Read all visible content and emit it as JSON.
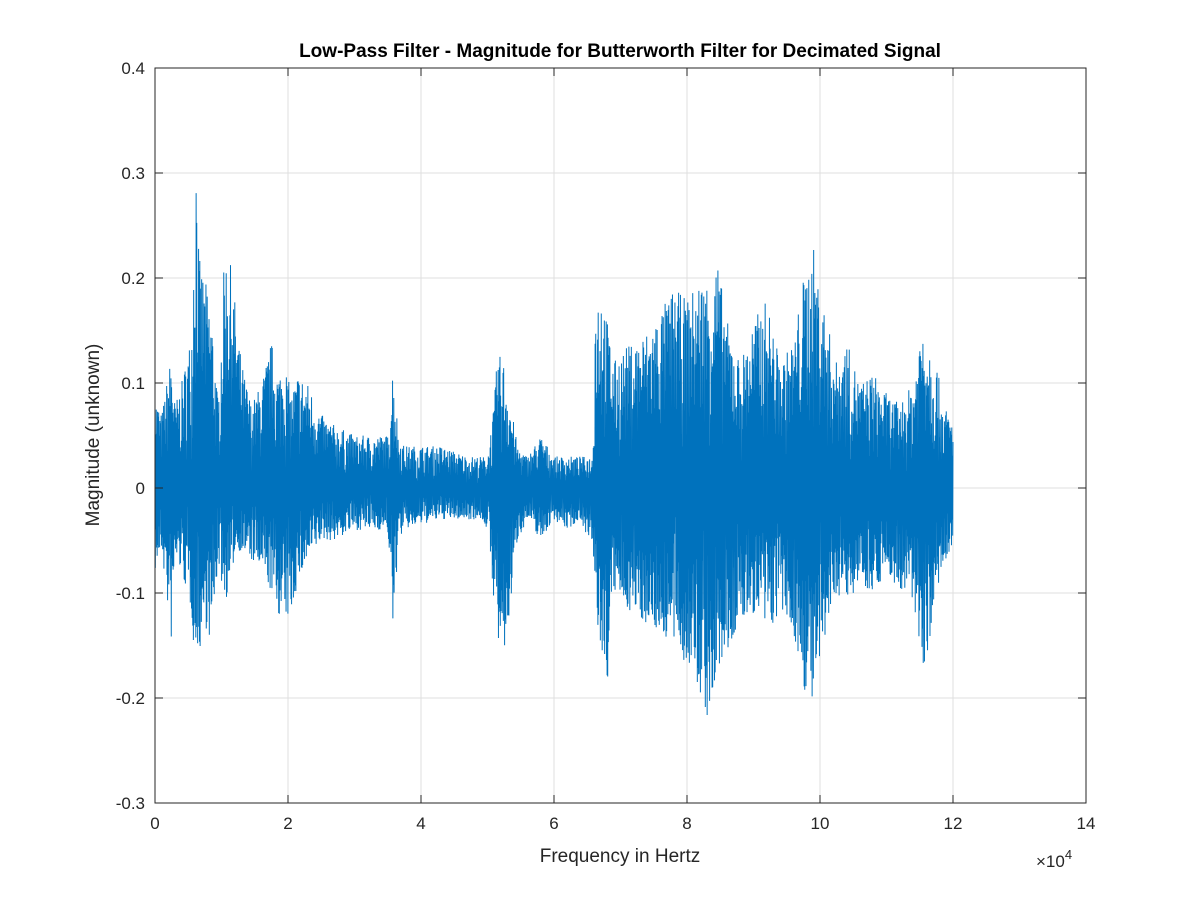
{
  "chart_data": {
    "type": "line",
    "title": "Low-Pass Filter - Magnitude for Butterworth Filter for Decimated Signal",
    "xlabel": "Frequency in Hertz",
    "ylabel": "Magnitude (unknown)",
    "xlim": [
      0,
      140000
    ],
    "ylim": [
      -0.3,
      0.4
    ],
    "x_ticks": [
      0,
      20000,
      40000,
      60000,
      80000,
      100000,
      120000,
      140000
    ],
    "x_tick_labels": [
      "0",
      "2",
      "4",
      "6",
      "8",
      "10",
      "12",
      "14"
    ],
    "x_multiplier": "×10",
    "x_multiplier_exp": "4",
    "y_ticks": [
      -0.3,
      -0.2,
      -0.1,
      0,
      0.1,
      0.2,
      0.3,
      0.4
    ],
    "y_tick_labels": [
      "-0.3",
      "-0.2",
      "-0.1",
      "0",
      "0.1",
      "0.2",
      "0.3",
      "0.4"
    ],
    "grid": true,
    "series": [
      {
        "color": "#0072BD",
        "envelope_x": [
          0,
          1000,
          2500,
          3000,
          4000,
          5500,
          6000,
          6300,
          6600,
          7500,
          8500,
          9500,
          10500,
          11500,
          12000,
          13000,
          14500,
          16000,
          17500,
          18500,
          19500,
          20500,
          21500,
          23000,
          25000,
          27000,
          30000,
          33000,
          35000,
          35800,
          36600,
          37500,
          40000,
          43000,
          45000,
          47000,
          49000,
          50000,
          51000,
          51500,
          52500,
          53500,
          54500,
          56000,
          58000,
          60000,
          62000,
          64000,
          65800,
          66200,
          67000,
          68000,
          69000,
          70000,
          72000,
          74000,
          76000,
          78000,
          80000,
          82000,
          83500,
          84500,
          86000,
          88000,
          90000,
          92000,
          94000,
          96000,
          97500,
          99000,
          100000,
          101000,
          102500,
          104000,
          106000,
          108000,
          110000,
          112000,
          114000,
          115500,
          116500,
          117500,
          118500,
          119500,
          120000
        ],
        "envelope_max": [
          0.09,
          0.07,
          0.13,
          0.08,
          0.1,
          0.15,
          0.3,
          0.35,
          0.22,
          0.2,
          0.17,
          0.08,
          0.23,
          0.21,
          0.18,
          0.12,
          0.08,
          0.1,
          0.14,
          0.11,
          0.12,
          0.09,
          0.11,
          0.1,
          0.07,
          0.06,
          0.05,
          0.05,
          0.05,
          0.12,
          0.05,
          0.04,
          0.04,
          0.04,
          0.035,
          0.03,
          0.03,
          0.03,
          0.08,
          0.13,
          0.12,
          0.08,
          0.04,
          0.03,
          0.05,
          0.03,
          0.03,
          0.03,
          0.03,
          0.18,
          0.2,
          0.16,
          0.12,
          0.13,
          0.14,
          0.15,
          0.17,
          0.19,
          0.18,
          0.2,
          0.2,
          0.22,
          0.16,
          0.12,
          0.16,
          0.18,
          0.12,
          0.14,
          0.2,
          0.23,
          0.19,
          0.16,
          0.12,
          0.14,
          0.1,
          0.11,
          0.09,
          0.08,
          0.1,
          0.17,
          0.14,
          0.12,
          0.08,
          0.07,
          0.06
        ],
        "envelope_min": [
          -0.08,
          -0.06,
          -0.15,
          -0.07,
          -0.08,
          -0.12,
          -0.17,
          -0.15,
          -0.16,
          -0.13,
          -0.15,
          -0.07,
          -0.11,
          -0.09,
          -0.06,
          -0.06,
          -0.07,
          -0.08,
          -0.1,
          -0.12,
          -0.13,
          -0.12,
          -0.09,
          -0.07,
          -0.05,
          -0.05,
          -0.04,
          -0.04,
          -0.04,
          -0.14,
          -0.05,
          -0.04,
          -0.035,
          -0.03,
          -0.03,
          -0.03,
          -0.03,
          -0.04,
          -0.11,
          -0.15,
          -0.17,
          -0.11,
          -0.05,
          -0.03,
          -0.05,
          -0.03,
          -0.04,
          -0.03,
          -0.06,
          -0.11,
          -0.16,
          -0.19,
          -0.1,
          -0.11,
          -0.12,
          -0.13,
          -0.14,
          -0.15,
          -0.17,
          -0.2,
          -0.23,
          -0.18,
          -0.16,
          -0.13,
          -0.12,
          -0.14,
          -0.12,
          -0.14,
          -0.19,
          -0.21,
          -0.18,
          -0.14,
          -0.1,
          -0.11,
          -0.09,
          -0.1,
          -0.08,
          -0.1,
          -0.11,
          -0.17,
          -0.15,
          -0.1,
          -0.08,
          -0.07,
          -0.06
        ]
      }
    ]
  }
}
